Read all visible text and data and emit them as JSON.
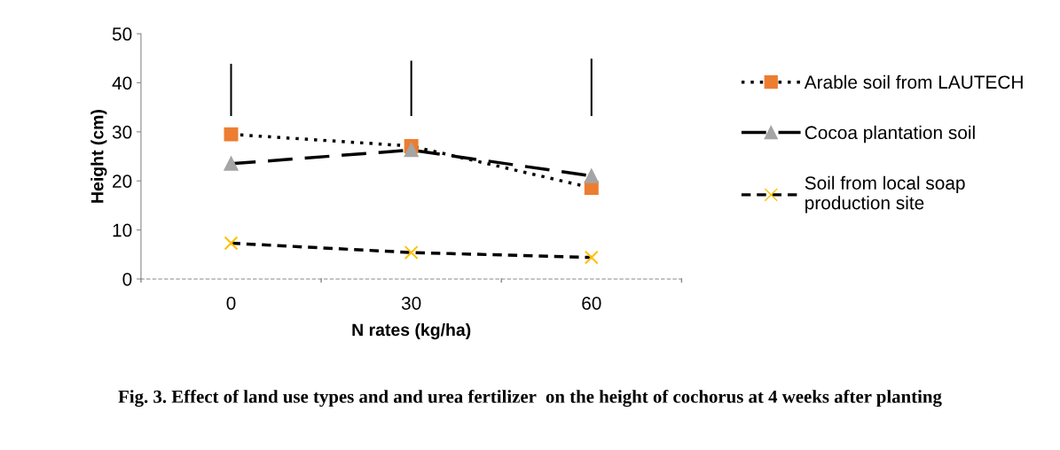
{
  "chart_data": {
    "type": "line",
    "title": "Fig. 3. Effect of land use types and and urea fertilizer  on the height of cochorus at 4 weeks after planting",
    "xlabel": "N rates (kg/ha)",
    "ylabel": "Height (cm)",
    "categories": [
      "0",
      "30",
      "60"
    ],
    "ylim": [
      0,
      50
    ],
    "yticks": [
      0,
      10,
      20,
      30,
      40,
      50
    ],
    "grid": false,
    "legend": "right",
    "series": [
      {
        "name": "Arable soil from LAUTECH",
        "color": "#ed7d31",
        "values": [
          29.5,
          27.1,
          18.6
        ],
        "marker": "square",
        "line_style": "dotted"
      },
      {
        "name": "Cocoa plantation soil",
        "color": "#a5a5a5",
        "values": [
          23.5,
          26.3,
          21.0
        ],
        "marker": "triangle",
        "line_style": "dashed"
      },
      {
        "name": "Soil from local soap production site",
        "color": "#ffc000",
        "values": [
          7.3,
          5.4,
          4.4
        ],
        "marker": "cross",
        "line_style": "dashed"
      },
      {
        "type": "bar",
        "color": "#000000",
        "base": [
          33.2,
          33.2,
          33.2
        ],
        "values": [
          10.7,
          11.3,
          11.7
        ]
      }
    ]
  }
}
